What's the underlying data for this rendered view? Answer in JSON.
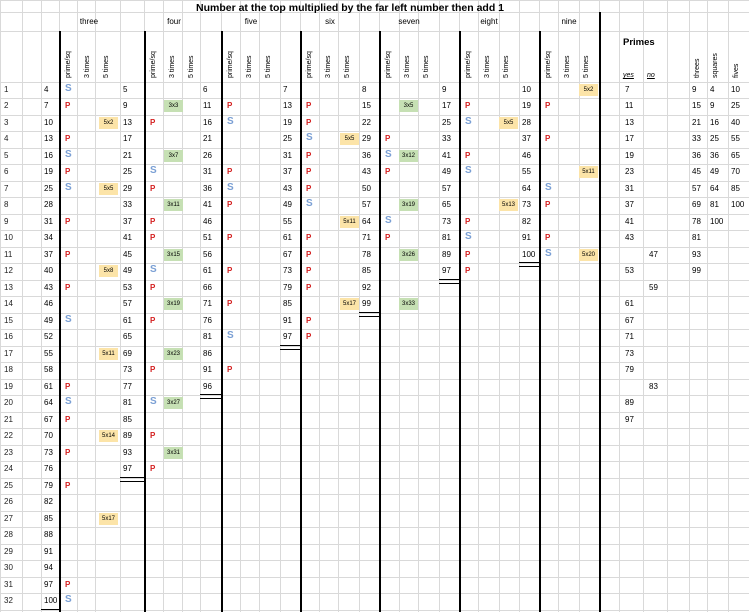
{
  "title": "Number at the top multiplied by the far left number then add 1",
  "groups": [
    {
      "label": "three",
      "sub": [
        "prime/sq",
        "3 times",
        "5 times"
      ]
    },
    {
      "label": "four",
      "sub": [
        "prime/sq",
        "3 times",
        "5 times"
      ]
    },
    {
      "label": "five",
      "sub": [
        "prime/sq",
        "3 times",
        "5 times"
      ]
    },
    {
      "label": "six",
      "sub": [
        "prime/sq",
        "3 times",
        "5 times"
      ]
    },
    {
      "label": "seven",
      "sub": [
        "prime/sq",
        "3 times",
        "5 times"
      ]
    },
    {
      "label": "eight",
      "sub": [
        "prime/sq",
        "3 times",
        "5 times"
      ]
    },
    {
      "label": "nine",
      "sub": [
        "prime/sq",
        "3 times",
        "5 times"
      ]
    }
  ],
  "primes": {
    "title": "Primes",
    "yes": "yes",
    "no": "no",
    "rows": [
      {
        "yes": "7"
      },
      {
        "yes": "11"
      },
      {
        "yes": "13"
      },
      {
        "yes": "17"
      },
      {
        "yes": "19"
      },
      {
        "yes": "23"
      },
      {
        "yes": "31"
      },
      {
        "yes": "37"
      },
      {
        "yes": "41"
      },
      {
        "yes": "43"
      },
      {
        "no": "47"
      },
      {
        "yes": "53"
      },
      {
        "no": "59"
      },
      {
        "yes": "61"
      },
      {
        "yes": "67"
      },
      {
        "yes": "71"
      },
      {
        "yes": "73"
      },
      {
        "yes": "79"
      },
      {
        "no": "83"
      },
      {
        "yes": "89"
      },
      {
        "yes": "97"
      }
    ]
  },
  "right_headers": [
    "threes",
    "squares",
    "fives"
  ],
  "right_rows": [
    [
      "9",
      "4",
      "10"
    ],
    [
      "15",
      "9",
      "25"
    ],
    [
      "21",
      "16",
      "40"
    ],
    [
      "33",
      "25",
      "55"
    ],
    [
      "36",
      "36",
      "65"
    ],
    [
      "45",
      "49",
      "70"
    ],
    [
      "57",
      "64",
      "85"
    ],
    [
      "69",
      "81",
      "100"
    ],
    [
      "78",
      "100",
      ""
    ],
    [
      "81",
      "",
      ""
    ],
    [
      "93",
      "",
      ""
    ],
    [
      "99",
      "",
      ""
    ]
  ],
  "row_numbers": [
    "1",
    "2",
    "3",
    "4",
    "5",
    "6",
    "7",
    "8",
    "9",
    "10",
    "11",
    "12",
    "13",
    "14",
    "15",
    "16",
    "17",
    "18",
    "19",
    "20",
    "21",
    "22",
    "23",
    "24",
    "25",
    "26",
    "27",
    "28",
    "29",
    "30",
    "31",
    "32",
    "33"
  ],
  "columns": {
    "three": [
      {
        "n": "4",
        "m": "S"
      },
      {
        "n": "7",
        "m": "P"
      },
      {
        "n": "10",
        "b5": "5x2"
      },
      {
        "n": "13",
        "m": "P"
      },
      {
        "n": "16",
        "m": "S"
      },
      {
        "n": "19",
        "m": "P"
      },
      {
        "n": "25",
        "m": "S",
        "b5": "5x5"
      },
      {
        "n": "28"
      },
      {
        "n": "31",
        "m": "P"
      },
      {
        "n": "34"
      },
      {
        "n": "37",
        "m": "P"
      },
      {
        "n": "40",
        "b5": "5x8"
      },
      {
        "n": "43",
        "m": "P"
      },
      {
        "n": "46"
      },
      {
        "n": "49",
        "m": "S"
      },
      {
        "n": "52"
      },
      {
        "n": "55",
        "b5": "5x11"
      },
      {
        "n": "58"
      },
      {
        "n": "61",
        "m": "P"
      },
      {
        "n": "64",
        "m": "S"
      },
      {
        "n": "67",
        "m": "P"
      },
      {
        "n": "70",
        "b5": "5x14"
      },
      {
        "n": "73",
        "m": "P"
      },
      {
        "n": "76"
      },
      {
        "n": "79",
        "m": "P"
      },
      {
        "n": "82"
      },
      {
        "n": "85",
        "b5": "5x17"
      },
      {
        "n": "88"
      },
      {
        "n": "91"
      },
      {
        "n": "94"
      },
      {
        "n": "97",
        "m": "P"
      },
      {
        "n": "100",
        "m": "S"
      }
    ],
    "four": [
      {
        "n": "5"
      },
      {
        "n": "9",
        "b3": "3x3"
      },
      {
        "n": "13",
        "m": "P"
      },
      {
        "n": "17"
      },
      {
        "n": "21",
        "b3": "3x7"
      },
      {
        "n": "25",
        "m": "S"
      },
      {
        "n": "29",
        "m": "P"
      },
      {
        "n": "33",
        "b3": "3x11"
      },
      {
        "n": "37",
        "m": "P"
      },
      {
        "n": "41",
        "m": "P"
      },
      {
        "n": "45",
        "b3": "3x15"
      },
      {
        "n": "49",
        "m": "S"
      },
      {
        "n": "53",
        "m": "P"
      },
      {
        "n": "57",
        "b3": "3x19"
      },
      {
        "n": "61",
        "m": "P"
      },
      {
        "n": "65"
      },
      {
        "n": "69",
        "b3": "3x23"
      },
      {
        "n": "73",
        "m": "P"
      },
      {
        "n": "77"
      },
      {
        "n": "81",
        "m": "S",
        "b3": "3x27"
      },
      {
        "n": "85"
      },
      {
        "n": "89",
        "m": "P"
      },
      {
        "n": "93",
        "b3": "3x31"
      },
      {
        "n": "97",
        "m": "P"
      }
    ],
    "five": [
      {
        "n": "6"
      },
      {
        "n": "11",
        "m": "P"
      },
      {
        "n": "16",
        "m": "S"
      },
      {
        "n": "21"
      },
      {
        "n": "26"
      },
      {
        "n": "31",
        "m": "P"
      },
      {
        "n": "36",
        "m": "S"
      },
      {
        "n": "41",
        "m": "P"
      },
      {
        "n": "46"
      },
      {
        "n": "51",
        "m": "P"
      },
      {
        "n": "56"
      },
      {
        "n": "61",
        "m": "P"
      },
      {
        "n": "66"
      },
      {
        "n": "71",
        "m": "P"
      },
      {
        "n": "76"
      },
      {
        "n": "81",
        "m": "S"
      },
      {
        "n": "86"
      },
      {
        "n": "91",
        "m": "P"
      },
      {
        "n": "96"
      }
    ],
    "six": [
      {
        "n": "7"
      },
      {
        "n": "13",
        "m": "P"
      },
      {
        "n": "19",
        "m": "P"
      },
      {
        "n": "25",
        "m": "S",
        "b5": "5x5"
      },
      {
        "n": "31",
        "m": "P"
      },
      {
        "n": "37",
        "m": "P"
      },
      {
        "n": "43",
        "m": "P"
      },
      {
        "n": "49",
        "m": "S"
      },
      {
        "n": "55",
        "b5": "5x11"
      },
      {
        "n": "61",
        "m": "P"
      },
      {
        "n": "67",
        "m": "P"
      },
      {
        "n": "73",
        "m": "P"
      },
      {
        "n": "79",
        "m": "P"
      },
      {
        "n": "85",
        "b5": "5x17"
      },
      {
        "n": "91",
        "m": "P"
      },
      {
        "n": "97",
        "m": "P"
      }
    ],
    "seven": [
      {
        "n": "8"
      },
      {
        "n": "15",
        "b3": "3x5"
      },
      {
        "n": "22"
      },
      {
        "n": "29",
        "m": "P"
      },
      {
        "n": "36",
        "m": "S",
        "b3": "3x12"
      },
      {
        "n": "43",
        "m": "P"
      },
      {
        "n": "50"
      },
      {
        "n": "57",
        "b3": "3x19"
      },
      {
        "n": "64",
        "m": "S"
      },
      {
        "n": "71",
        "m": "P"
      },
      {
        "n": "78",
        "b3": "3x26"
      },
      {
        "n": "85"
      },
      {
        "n": "92"
      },
      {
        "n": "99",
        "b3": "3x33"
      }
    ],
    "eight": [
      {
        "n": "9"
      },
      {
        "n": "17",
        "m": "P"
      },
      {
        "n": "25",
        "m": "S",
        "b5": "5x5"
      },
      {
        "n": "33"
      },
      {
        "n": "41",
        "m": "P"
      },
      {
        "n": "49",
        "m": "S"
      },
      {
        "n": "57"
      },
      {
        "n": "65",
        "b5": "5x13"
      },
      {
        "n": "73",
        "m": "P"
      },
      {
        "n": "81",
        "m": "S"
      },
      {
        "n": "89",
        "m": "P"
      },
      {
        "n": "97",
        "m": "P"
      }
    ],
    "nine": [
      {
        "n": "10",
        "b5": "5x2"
      },
      {
        "n": "19",
        "m": "P"
      },
      {
        "n": "28"
      },
      {
        "n": "37",
        "m": "P"
      },
      {
        "n": "46"
      },
      {
        "n": "55",
        "b5": "5x11"
      },
      {
        "n": "64",
        "m": "S"
      },
      {
        "n": "73",
        "m": "P"
      },
      {
        "n": "82"
      },
      {
        "n": "91",
        "m": "P"
      },
      {
        "n": "100",
        "m": "S",
        "b5": "5x20"
      }
    ]
  },
  "colors": {
    "prime": "#d42020",
    "square": "#7a9fd4",
    "three_badge": "#c6e0b4",
    "five_badge": "#fce4a8"
  }
}
